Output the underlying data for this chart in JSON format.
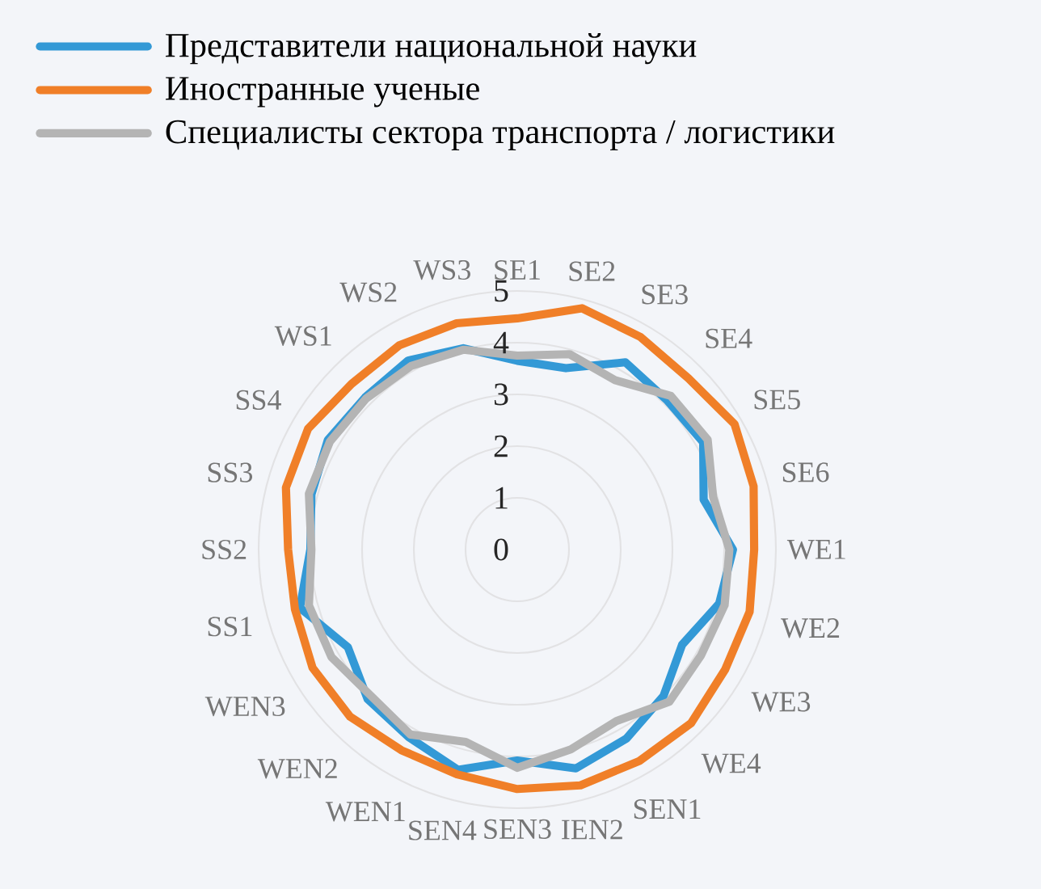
{
  "chart_data": {
    "type": "radar",
    "categories": [
      "SE1",
      "SE2",
      "SE3",
      "SE4",
      "SE5",
      "SE6",
      "WE1",
      "WE2",
      "WE3",
      "WE4",
      "SEN1",
      "IEN2",
      "SEN3",
      "SEN4",
      "WEN1",
      "WEN2",
      "WEN3",
      "SS1",
      "SS2",
      "SS3",
      "SS4",
      "WS1",
      "WS2",
      "WS3"
    ],
    "series": [
      {
        "name": "Представители национальной науки",
        "color": "#3399d6",
        "values": [
          3.65,
          3.63,
          4.18,
          4.09,
          4.15,
          3.73,
          4.17,
          4.04,
          3.68,
          4.0,
          4.22,
          4.38,
          4.08,
          4.41,
          4.19,
          4.09,
          3.78,
          4.35,
          4.0,
          4.12,
          4.23,
          4.16,
          4.22,
          4.03
        ]
      },
      {
        "name": "Иностранные ученые",
        "color": "#f07f28",
        "values": [
          4.47,
          4.83,
          4.75,
          4.68,
          4.85,
          4.73,
          4.58,
          4.65,
          4.64,
          4.75,
          4.72,
          4.72,
          4.63,
          4.5,
          4.48,
          4.57,
          4.57,
          4.45,
          4.43,
          4.63,
          4.67,
          4.53,
          4.56,
          4.53
        ]
      },
      {
        "name": "Специалисты сектора транспорта / логистики",
        "color": "#b4b4b4",
        "values": [
          3.75,
          3.91,
          3.78,
          4.2,
          4.25,
          3.92,
          4.1,
          4.15,
          4.1,
          4.16,
          3.83,
          4.0,
          4.22,
          3.85,
          4.13,
          4.0,
          4.15,
          4.17,
          3.98,
          4.17,
          4.18,
          4.13,
          4.1,
          4.0
        ]
      }
    ],
    "ylim": [
      0,
      5
    ],
    "yticks": [
      0,
      1,
      2,
      3,
      4,
      5
    ],
    "grid": "y",
    "legend": "top left"
  }
}
